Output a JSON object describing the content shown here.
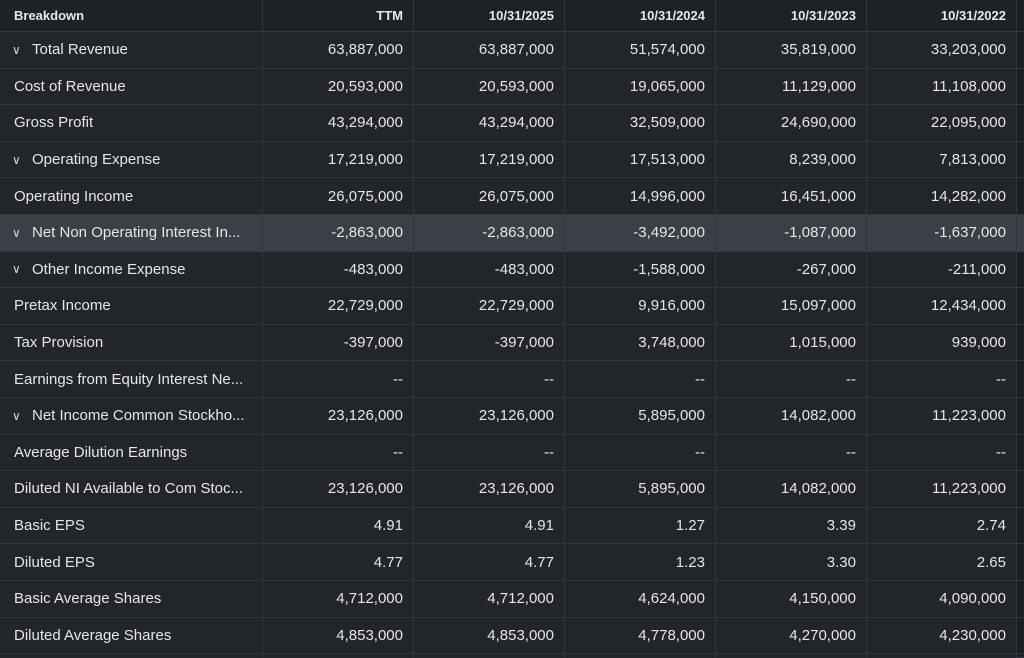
{
  "headers": [
    "Breakdown",
    "TTM",
    "10/31/2025",
    "10/31/2024",
    "10/31/2023",
    "10/31/2022"
  ],
  "rows": [
    {
      "label": "Total Revenue",
      "expandable": true,
      "values": [
        "63,887,000",
        "63,887,000",
        "51,574,000",
        "35,819,000",
        "33,203,000"
      ]
    },
    {
      "label": "Cost of Revenue",
      "expandable": false,
      "values": [
        "20,593,000",
        "20,593,000",
        "19,065,000",
        "11,129,000",
        "11,108,000"
      ]
    },
    {
      "label": "Gross Profit",
      "expandable": false,
      "values": [
        "43,294,000",
        "43,294,000",
        "32,509,000",
        "24,690,000",
        "22,095,000"
      ]
    },
    {
      "label": "Operating Expense",
      "expandable": true,
      "values": [
        "17,219,000",
        "17,219,000",
        "17,513,000",
        "8,239,000",
        "7,813,000"
      ]
    },
    {
      "label": "Operating Income",
      "expandable": false,
      "values": [
        "26,075,000",
        "26,075,000",
        "14,996,000",
        "16,451,000",
        "14,282,000"
      ]
    },
    {
      "label": "Net Non Operating Interest In...",
      "expandable": true,
      "highlighted": true,
      "values": [
        "-2,863,000",
        "-2,863,000",
        "-3,492,000",
        "-1,087,000",
        "-1,637,000"
      ]
    },
    {
      "label": "Other Income Expense",
      "expandable": true,
      "values": [
        "-483,000",
        "-483,000",
        "-1,588,000",
        "-267,000",
        "-211,000"
      ]
    },
    {
      "label": "Pretax Income",
      "expandable": false,
      "values": [
        "22,729,000",
        "22,729,000",
        "9,916,000",
        "15,097,000",
        "12,434,000"
      ]
    },
    {
      "label": "Tax Provision",
      "expandable": false,
      "values": [
        "-397,000",
        "-397,000",
        "3,748,000",
        "1,015,000",
        "939,000"
      ]
    },
    {
      "label": "Earnings from Equity Interest Ne...",
      "expandable": false,
      "values": [
        "--",
        "--",
        "--",
        "--",
        "--"
      ]
    },
    {
      "label": "Net Income Common Stockho...",
      "expandable": true,
      "values": [
        "23,126,000",
        "23,126,000",
        "5,895,000",
        "14,082,000",
        "11,223,000"
      ]
    },
    {
      "label": "Average Dilution Earnings",
      "expandable": false,
      "values": [
        "--",
        "--",
        "--",
        "--",
        "--"
      ]
    },
    {
      "label": "Diluted NI Available to Com Stoc...",
      "expandable": false,
      "values": [
        "23,126,000",
        "23,126,000",
        "5,895,000",
        "14,082,000",
        "11,223,000"
      ]
    },
    {
      "label": "Basic EPS",
      "expandable": false,
      "values": [
        "4.91",
        "4.91",
        "1.27",
        "3.39",
        "2.74"
      ]
    },
    {
      "label": "Diluted EPS",
      "expandable": false,
      "values": [
        "4.77",
        "4.77",
        "1.23",
        "3.30",
        "2.65"
      ]
    },
    {
      "label": "Basic Average Shares",
      "expandable": false,
      "values": [
        "4,712,000",
        "4,712,000",
        "4,624,000",
        "4,150,000",
        "4,090,000"
      ]
    },
    {
      "label": "Diluted Average Shares",
      "expandable": false,
      "values": [
        "4,853,000",
        "4,853,000",
        "4,778,000",
        "4,270,000",
        "4,230,000"
      ]
    }
  ],
  "icons": {
    "expand": "chevron-down-icon"
  },
  "colors": {
    "background": "#1c1f24",
    "row": "#22252a",
    "highlight": "#3a4045",
    "border": "#33373d",
    "text": "#e6e6e6"
  }
}
